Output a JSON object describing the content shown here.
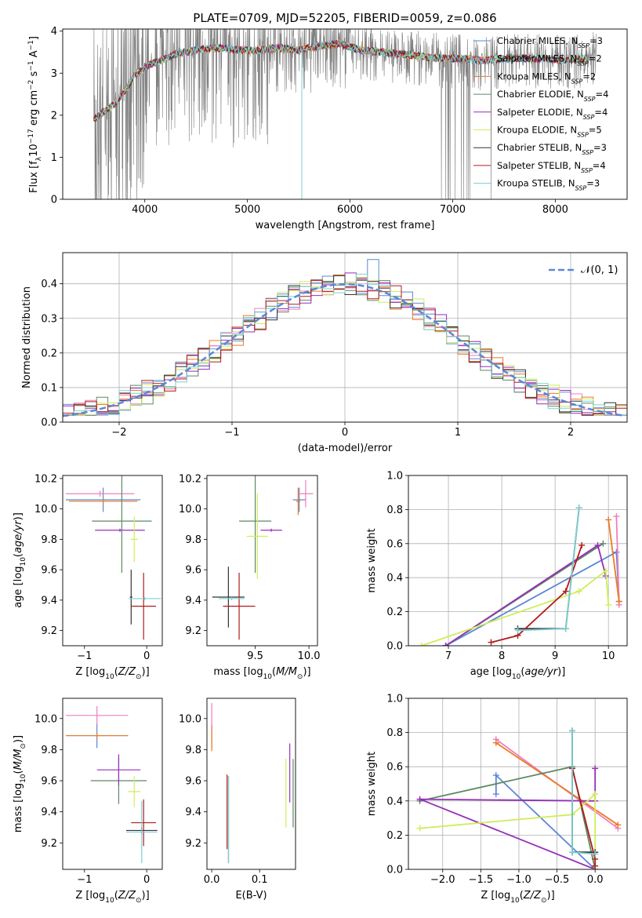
{
  "figure_title": "PLATE=0709, MJD=52205, FIBERID=0059, z=0.086",
  "colors": {
    "data": "#808080",
    "chabrier_miles": "#5b87d6",
    "salpeter_miles": "#ee7fbd",
    "kroupa_miles": "#ec7a24",
    "chabrier_elodie": "#5c8a64",
    "salpeter_elodie": "#962fb8",
    "kroupa_elodie": "#cdee5b",
    "chabrier_stelib": "#333333",
    "salpeter_stelib": "#b01c1c",
    "kroupa_stelib": "#7dcfd3",
    "gaussian": "#5b87d6",
    "grid": "#b0b0b0"
  },
  "chart_data": [
    {
      "id": "spectrum",
      "type": "line",
      "title": "PLATE=0709, MJD=52205, FIBERID=0059, z=0.086",
      "xlabel": "wavelength [Angstrom, rest frame]",
      "ylabel": "Flux [f_λ 10^-17 erg cm^-2 s^-1 A^-1]",
      "xlim": [
        3200,
        8700
      ],
      "ylim": [
        0,
        4.05
      ],
      "xticks": [
        "4000",
        "5000",
        "6000",
        "7000",
        "8000"
      ],
      "yticks": [
        "0",
        "1",
        "2",
        "3",
        "4"
      ],
      "grid": false,
      "legend": "right",
      "legend_entries": [
        "Chabrier MILES, N_SSP=3",
        "Salpeter MILES, N_SSP=2",
        "Kroupa MILES, N_SSP=2",
        "Chabrier ELODIE, N_SSP=4",
        "Salpeter ELODIE, N_SSP=4",
        "Kroupa ELODIE, N_SSP=5",
        "Chabrier STELIB, N_SSP=3",
        "Salpeter STELIB, N_SSP=4",
        "Kroupa STELIB, N_SSP=3"
      ],
      "continuum": {
        "x": [
          3500,
          3700,
          3800,
          3900,
          4000,
          4100,
          4200,
          4300,
          4500,
          4700,
          4900,
          5100,
          5300,
          5500,
          5700,
          5900,
          6100,
          6300,
          6500,
          6700,
          6900,
          7100,
          7300,
          7500,
          7700,
          7900,
          8100,
          8300,
          8400
        ],
        "y": [
          1.95,
          2.3,
          2.6,
          3.0,
          3.15,
          3.25,
          3.35,
          3.45,
          3.55,
          3.6,
          3.55,
          3.55,
          3.6,
          3.55,
          3.65,
          3.7,
          3.55,
          3.5,
          3.45,
          3.4,
          3.35,
          3.35,
          3.3,
          3.35,
          3.35,
          3.35,
          3.3,
          3.35,
          3.45
        ]
      }
    },
    {
      "id": "residuals",
      "type": "histogram",
      "xlabel": "(data-model)/error",
      "ylabel": "Normed distribution",
      "xlim": [
        -2.5,
        2.5
      ],
      "ylim": [
        0,
        0.49
      ],
      "xticks": [
        "−2",
        "−1",
        "0",
        "1",
        "2"
      ],
      "yticks": [
        "0.0",
        "0.1",
        "0.2",
        "0.3",
        "0.4"
      ],
      "grid": true,
      "legend_entry": "𝒩(0, 1)",
      "legend": "top-right",
      "bin_width": 0.1
    },
    {
      "id": "age_vs_Z",
      "type": "errorbar",
      "xlabel": "Z [log10(Z/Z⊙)]",
      "ylabel": "age  [log10(age/yr)]",
      "xlim": [
        -1.35,
        0.25
      ],
      "ylim": [
        9.1,
        10.22
      ],
      "xticks": [
        "−1",
        "0"
      ],
      "xtick_values": [
        -1,
        0
      ],
      "yticks": [
        "9.2",
        "9.4",
        "9.6",
        "9.8",
        "10.0",
        "10.2"
      ],
      "ytick_values": [
        9.2,
        9.4,
        9.6,
        9.8,
        10.0,
        10.2
      ],
      "points": [
        {
          "c": "chabrier_miles",
          "x": -0.7,
          "xe": 0.6,
          "y": 10.06,
          "ye": 0.08
        },
        {
          "c": "salpeter_miles",
          "x": -0.75,
          "xe": 0.55,
          "y": 10.1,
          "ye": 0.02
        },
        {
          "c": "kroupa_miles",
          "x": -0.7,
          "xe": 0.55,
          "y": 10.05,
          "ye": 0.02
        },
        {
          "c": "chabrier_elodie",
          "x": -0.4,
          "xe": 0.48,
          "y": 9.92,
          "ye": 0.34
        },
        {
          "c": "salpeter_elodie",
          "x": -0.43,
          "xe": 0.4,
          "y": 9.86,
          "ye": 0.01
        },
        {
          "c": "kroupa_elodie",
          "x": -0.2,
          "xe": 0.06,
          "y": 9.8,
          "ye": 0.15
        },
        {
          "c": "chabrier_stelib",
          "x": -0.25,
          "xe": 0.02,
          "y": 9.42,
          "ye": 0.18
        },
        {
          "c": "salpeter_stelib",
          "x": -0.05,
          "xe": 0.2,
          "y": 9.36,
          "ye": 0.22
        },
        {
          "c": "kroupa_stelib",
          "x": -0.03,
          "xe": 0.26,
          "y": 9.41,
          "ye": 0.01
        }
      ]
    },
    {
      "id": "age_vs_mass",
      "type": "errorbar",
      "xlabel": "mass [log10(M/M⊙)]",
      "ylabel": "",
      "xlim": [
        9.05,
        10.08
      ],
      "ylim": [
        9.1,
        10.22
      ],
      "xticks": [
        "9.5",
        "10.0"
      ],
      "xtick_values": [
        9.5,
        10.0
      ],
      "yticks": [
        "9.2",
        "9.4",
        "9.6",
        "9.8",
        "10.0",
        "10.2"
      ],
      "ytick_values": [
        9.2,
        9.4,
        9.6,
        9.8,
        10.0,
        10.2
      ],
      "points": [
        {
          "c": "chabrier_miles",
          "x": 9.91,
          "xe": 0.06,
          "y": 10.06,
          "ye": 0.08
        },
        {
          "c": "salpeter_miles",
          "x": 9.97,
          "xe": 0.07,
          "y": 10.1,
          "ye": 0.09
        },
        {
          "c": "kroupa_miles",
          "x": 9.9,
          "xe": 0.02,
          "y": 10.05,
          "ye": 0.09
        },
        {
          "c": "chabrier_elodie",
          "x": 9.5,
          "xe": 0.15,
          "y": 9.92,
          "ye": 0.34
        },
        {
          "c": "salpeter_elodie",
          "x": 9.65,
          "xe": 0.1,
          "y": 9.86,
          "ye": 0.01
        },
        {
          "c": "kroupa_elodie",
          "x": 9.52,
          "xe": 0.1,
          "y": 9.82,
          "ye": 0.28
        },
        {
          "c": "chabrier_stelib",
          "x": 9.25,
          "xe": 0.15,
          "y": 9.42,
          "ye": 0.2
        },
        {
          "c": "salpeter_stelib",
          "x": 9.35,
          "xe": 0.15,
          "y": 9.36,
          "ye": 0.22
        },
        {
          "c": "kroupa_stelib",
          "x": 9.28,
          "xe": 0.12,
          "y": 9.41,
          "ye": 0.01
        }
      ]
    },
    {
      "id": "weight_vs_age",
      "type": "line",
      "xlabel": "age  [log10(age/yr)]",
      "ylabel": "mass weight",
      "xlim": [
        6.25,
        10.35
      ],
      "ylim": [
        0,
        1.0
      ],
      "xticks": [
        "7",
        "8",
        "9",
        "10"
      ],
      "xtick_values": [
        7,
        8,
        9,
        10
      ],
      "yticks": [
        "0.0",
        "0.2",
        "0.4",
        "0.6",
        "0.8",
        "1.0"
      ],
      "ytick_values": [
        0,
        0.2,
        0.4,
        0.6,
        0.8,
        1.0
      ],
      "grid": true,
      "series": [
        {
          "c": "chabrier_miles",
          "x": [
            6.95,
            10.15,
            10.2
          ],
          "y": [
            0.0,
            0.55,
            0.26
          ]
        },
        {
          "c": "salpeter_miles",
          "x": [
            10.15,
            10.2
          ],
          "y": [
            0.76,
            0.24
          ]
        },
        {
          "c": "kroupa_miles",
          "x": [
            10.0,
            10.2
          ],
          "y": [
            0.74,
            0.26
          ]
        },
        {
          "c": "chabrier_elodie",
          "x": [
            6.95,
            9.9
          ],
          "y": [
            0.0,
            0.6
          ]
        },
        {
          "c": "salpeter_elodie",
          "x": [
            6.95,
            9.8,
            9.95
          ],
          "y": [
            0.0,
            0.59,
            0.41
          ]
        },
        {
          "c": "kroupa_elodie",
          "x": [
            6.5,
            9.45,
            9.95,
            10.0
          ],
          "y": [
            0.0,
            0.32,
            0.44,
            0.24
          ]
        },
        {
          "c": "chabrier_stelib",
          "x": [
            8.3,
            9.2,
            9.45
          ],
          "y": [
            0.1,
            0.1,
            0.81
          ]
        },
        {
          "c": "salpeter_stelib",
          "x": [
            7.8,
            8.3,
            9.2,
            9.5
          ],
          "y": [
            0.02,
            0.06,
            0.32,
            0.59
          ]
        },
        {
          "c": "kroupa_stelib",
          "x": [
            8.3,
            9.2,
            9.45
          ],
          "y": [
            0.09,
            0.1,
            0.81
          ]
        }
      ]
    },
    {
      "id": "mass_vs_Z",
      "type": "errorbar",
      "xlabel": "Z [log10(Z/Z⊙)]",
      "ylabel": "mass [log10(M/M⊙)]",
      "xlim": [
        -1.35,
        0.25
      ],
      "ylim": [
        9.03,
        10.13
      ],
      "xticks": [
        "−1",
        "0"
      ],
      "xtick_values": [
        -1,
        0
      ],
      "yticks": [
        "9.2",
        "9.4",
        "9.6",
        "9.8",
        "10.0"
      ],
      "ytick_values": [
        9.2,
        9.4,
        9.6,
        9.8,
        10.0
      ],
      "points": [
        {
          "c": "chabrier_miles",
          "x": -0.8,
          "xe": 0.5,
          "y": 9.89,
          "ye": 0.08
        },
        {
          "c": "salpeter_miles",
          "x": -0.8,
          "xe": 0.5,
          "y": 10.02,
          "ye": 0.06
        },
        {
          "c": "kroupa_miles",
          "x": -0.8,
          "xe": 0.5,
          "y": 9.89,
          "ye": 0.02
        },
        {
          "c": "chabrier_elodie",
          "x": -0.45,
          "xe": 0.45,
          "y": 9.6,
          "ye": 0.15
        },
        {
          "c": "salpeter_elodie",
          "x": -0.45,
          "xe": 0.35,
          "y": 9.67,
          "ye": 0.1
        },
        {
          "c": "kroupa_elodie",
          "x": -0.2,
          "xe": 0.1,
          "y": 9.53,
          "ye": 0.1
        },
        {
          "c": "chabrier_stelib",
          "x": -0.08,
          "xe": 0.25,
          "y": 9.28,
          "ye": 0.02
        },
        {
          "c": "salpeter_stelib",
          "x": -0.05,
          "xe": 0.2,
          "y": 9.33,
          "ye": 0.15
        },
        {
          "c": "kroupa_stelib",
          "x": -0.08,
          "xe": 0.25,
          "y": 9.27,
          "ye": 0.2
        }
      ]
    },
    {
      "id": "mass_vs_EBV",
      "type": "errorbar",
      "xlabel": "E(B-V)",
      "ylabel": "",
      "xlim": [
        -0.01,
        0.175
      ],
      "ylim": [
        9.03,
        10.13
      ],
      "xticks": [
        "0.0",
        "0.1"
      ],
      "xtick_values": [
        0,
        0.1
      ],
      "yticks": [
        "9.2",
        "9.4",
        "9.6",
        "9.8",
        "10.0"
      ],
      "ytick_values": [
        9.2,
        9.4,
        9.6,
        9.8,
        10.0
      ],
      "points": [
        {
          "c": "chabrier_miles",
          "x": 0.0,
          "xe": 0.0,
          "y": 9.89,
          "ye": 0.08
        },
        {
          "c": "salpeter_miles",
          "x": 0.0,
          "xe": 0.0,
          "y": 10.02,
          "ye": 0.08
        },
        {
          "c": "kroupa_miles",
          "x": 0.0,
          "xe": 0.0,
          "y": 9.87,
          "ye": 0.08
        },
        {
          "c": "chabrier_elodie",
          "x": 0.17,
          "xe": 0.0,
          "y": 9.52,
          "ye": 0.22
        },
        {
          "c": "salpeter_elodie",
          "x": 0.163,
          "xe": 0.0,
          "y": 9.65,
          "ye": 0.19
        },
        {
          "c": "kroupa_elodie",
          "x": 0.155,
          "xe": 0.0,
          "y": 9.52,
          "ye": 0.22
        },
        {
          "c": "chabrier_stelib",
          "x": 0.035,
          "xe": 0.0,
          "y": 9.35,
          "ye": 0.28
        },
        {
          "c": "salpeter_stelib",
          "x": 0.032,
          "xe": 0.0,
          "y": 9.4,
          "ye": 0.24
        },
        {
          "c": "kroupa_stelib",
          "x": 0.035,
          "xe": 0.0,
          "y": 9.35,
          "ye": 0.28
        }
      ]
    },
    {
      "id": "weight_vs_Z",
      "type": "line",
      "xlabel": "Z [log10(Z/Z⊙)]",
      "ylabel": "mass weight",
      "xlim": [
        -2.45,
        0.42
      ],
      "ylim": [
        0,
        1.0
      ],
      "xticks": [
        "−2.0",
        "−1.5",
        "−1.0",
        "−0.5",
        "0.0"
      ],
      "xtick_values": [
        -2,
        -1.5,
        -1,
        -0.5,
        0
      ],
      "yticks": [
        "0.0",
        "0.2",
        "0.4",
        "0.6",
        "0.8",
        "1.0"
      ],
      "ytick_values": [
        0,
        0.2,
        0.4,
        0.6,
        0.8,
        1.0
      ],
      "grid": true,
      "series": [
        {
          "c": "chabrier_miles",
          "x": [
            -1.3,
            -1.3,
            0.0
          ],
          "y": [
            0.44,
            0.55,
            0.0
          ]
        },
        {
          "c": "salpeter_miles",
          "x": [
            -1.3,
            0.3
          ],
          "y": [
            0.76,
            0.24
          ]
        },
        {
          "c": "kroupa_miles",
          "x": [
            -1.3,
            0.3
          ],
          "y": [
            0.74,
            0.26
          ]
        },
        {
          "c": "chabrier_elodie",
          "x": [
            -2.3,
            -0.3,
            0.0
          ],
          "y": [
            0.4,
            0.6,
            0.0
          ]
        },
        {
          "c": "salpeter_elodie",
          "x": [
            0.0,
            0.0,
            -2.3,
            0.0
          ],
          "y": [
            0.59,
            0.4,
            0.41,
            0.0
          ]
        },
        {
          "c": "kroupa_elodie",
          "x": [
            -2.3,
            -0.3,
            0.0,
            0.0
          ],
          "y": [
            0.24,
            0.32,
            0.44,
            0.0
          ]
        },
        {
          "c": "chabrier_stelib",
          "x": [
            -0.3,
            -0.3,
            0.0
          ],
          "y": [
            0.81,
            0.1,
            0.1
          ]
        },
        {
          "c": "salpeter_stelib",
          "x": [
            -0.3,
            0.0,
            0.0
          ],
          "y": [
            0.59,
            0.06,
            0.02
          ]
        },
        {
          "c": "kroupa_stelib",
          "x": [
            -0.3,
            -0.3,
            0.0
          ],
          "y": [
            0.81,
            0.1,
            0.09
          ]
        }
      ]
    }
  ]
}
